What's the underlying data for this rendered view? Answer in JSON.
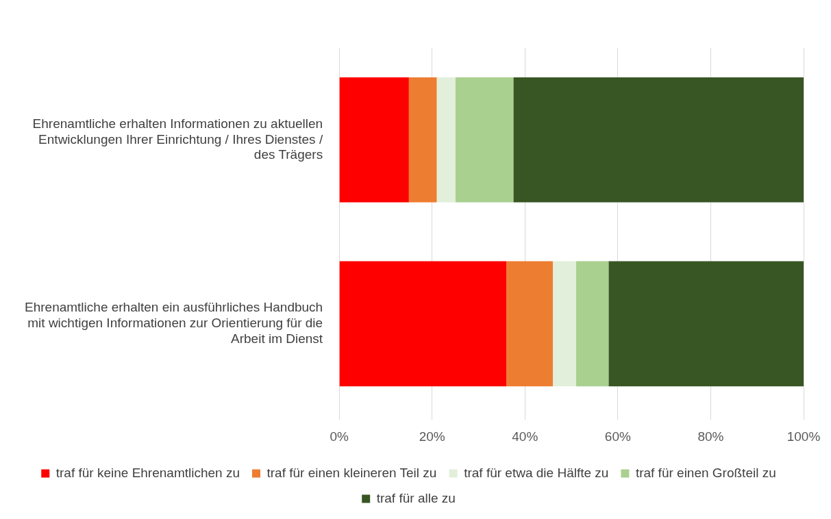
{
  "chart_data": {
    "type": "bar",
    "orientation": "horizontal",
    "stacked": true,
    "categories": [
      "Ehrenamtliche erhalten Informationen zu aktuellen Entwicklungen Ihrer Einrichtung / Ihres Dienstes / des Trägers",
      "Ehrenamtliche erhalten ein ausführliches Handbuch mit wichtigen Informationen zur Orientierung für die Arbeit im Dienst"
    ],
    "series": [
      {
        "name": "traf für keine Ehrenamtlichen zu",
        "color": "#ff0000",
        "values": [
          15,
          36
        ]
      },
      {
        "name": "traf für einen kleineren Teil zu",
        "color": "#ed7d31",
        "values": [
          6,
          10
        ]
      },
      {
        "name": "traf für etwa die Hälfte zu",
        "color": "#e2efda",
        "values": [
          4,
          5
        ]
      },
      {
        "name": "traf für einen Großteil zu",
        "color": "#a9d08e",
        "values": [
          12.5,
          7
        ]
      },
      {
        "name": "traf für alle zu",
        "color": "#375623",
        "values": [
          62.5,
          42
        ]
      }
    ],
    "xlim": [
      0,
      100
    ],
    "xticks": [
      {
        "value": 0,
        "label": "0%"
      },
      {
        "value": 20,
        "label": "20%"
      },
      {
        "value": 40,
        "label": "40%"
      },
      {
        "value": 60,
        "label": "60%"
      },
      {
        "value": 80,
        "label": "80%"
      },
      {
        "value": 100,
        "label": "100%"
      }
    ],
    "grid": "x",
    "legend": "bottom"
  }
}
